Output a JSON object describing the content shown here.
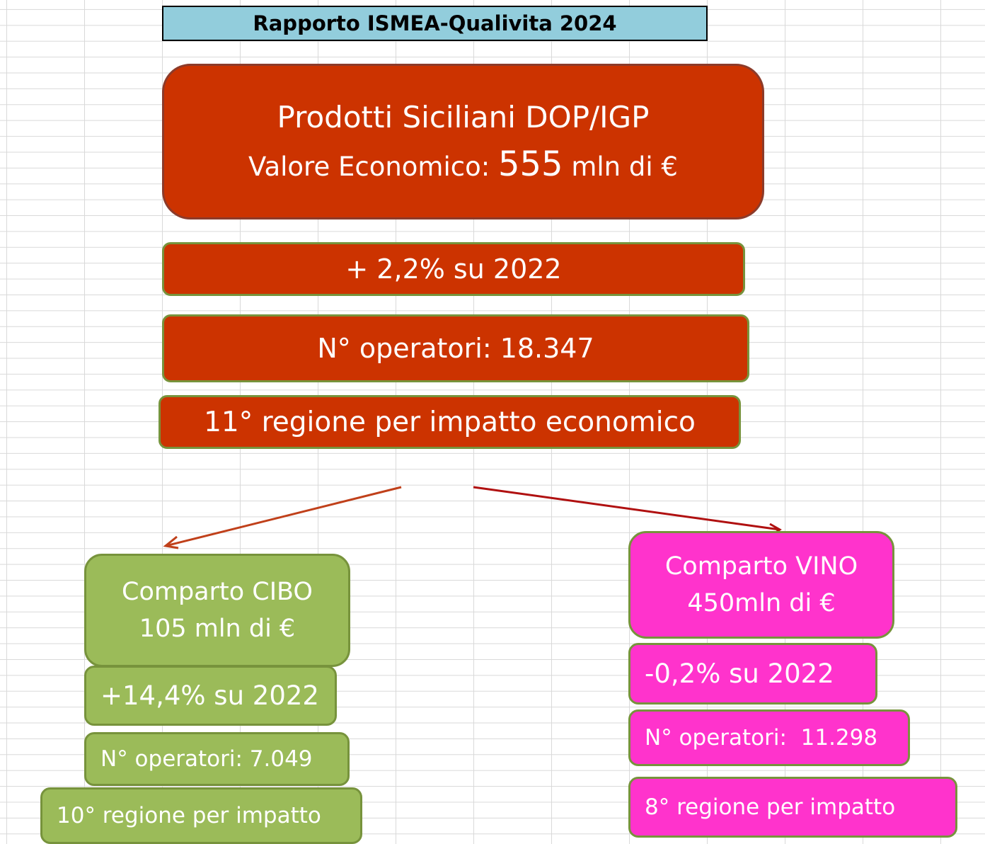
{
  "header": {
    "title": "Rapporto ISMEA-Qualivita 2024"
  },
  "main": {
    "title": "Prodotti Siciliani DOP/IGP",
    "value_label": "Valore Economico:",
    "value": "555",
    "unit": "mln di €"
  },
  "summary": [
    "+ 2,2% su 2022",
    "N° operatori: 18.347",
    "11° regione per impatto economico"
  ],
  "cibo": {
    "title": "Comparto CIBO",
    "value": "105 mln di €",
    "items": [
      "+14,4% su 2022",
      "N° operatori: 7.049",
      "10° regione per impatto"
    ]
  },
  "vino": {
    "title": "Comparto VINO",
    "value": "450mln di €",
    "items": [
      "-0,2% su 2022",
      "N° operatori:  11.298",
      "8° regione per impatto"
    ]
  }
}
